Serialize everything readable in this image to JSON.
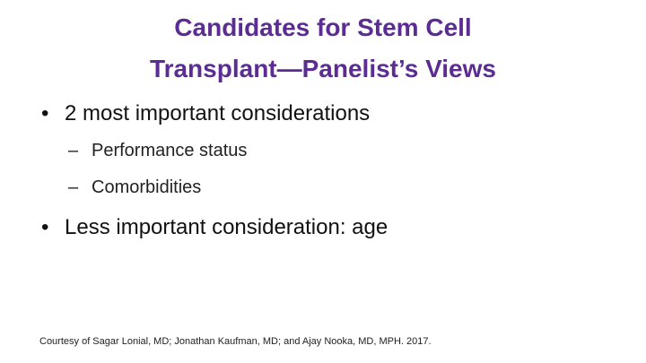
{
  "title": {
    "line1": "Candidates for Stem Cell",
    "line2": "Transplant—Panelist’s Views"
  },
  "bullets": [
    {
      "text": "2 most important considerations",
      "subitems": [
        "Performance status",
        "Comorbidities"
      ]
    },
    {
      "text": "Less important consideration: age"
    }
  ],
  "footer": "Courtesy of Sagar Lonial, MD; Jonathan Kaufman, MD; and Ajay Nooka, MD, MPH. 2017."
}
